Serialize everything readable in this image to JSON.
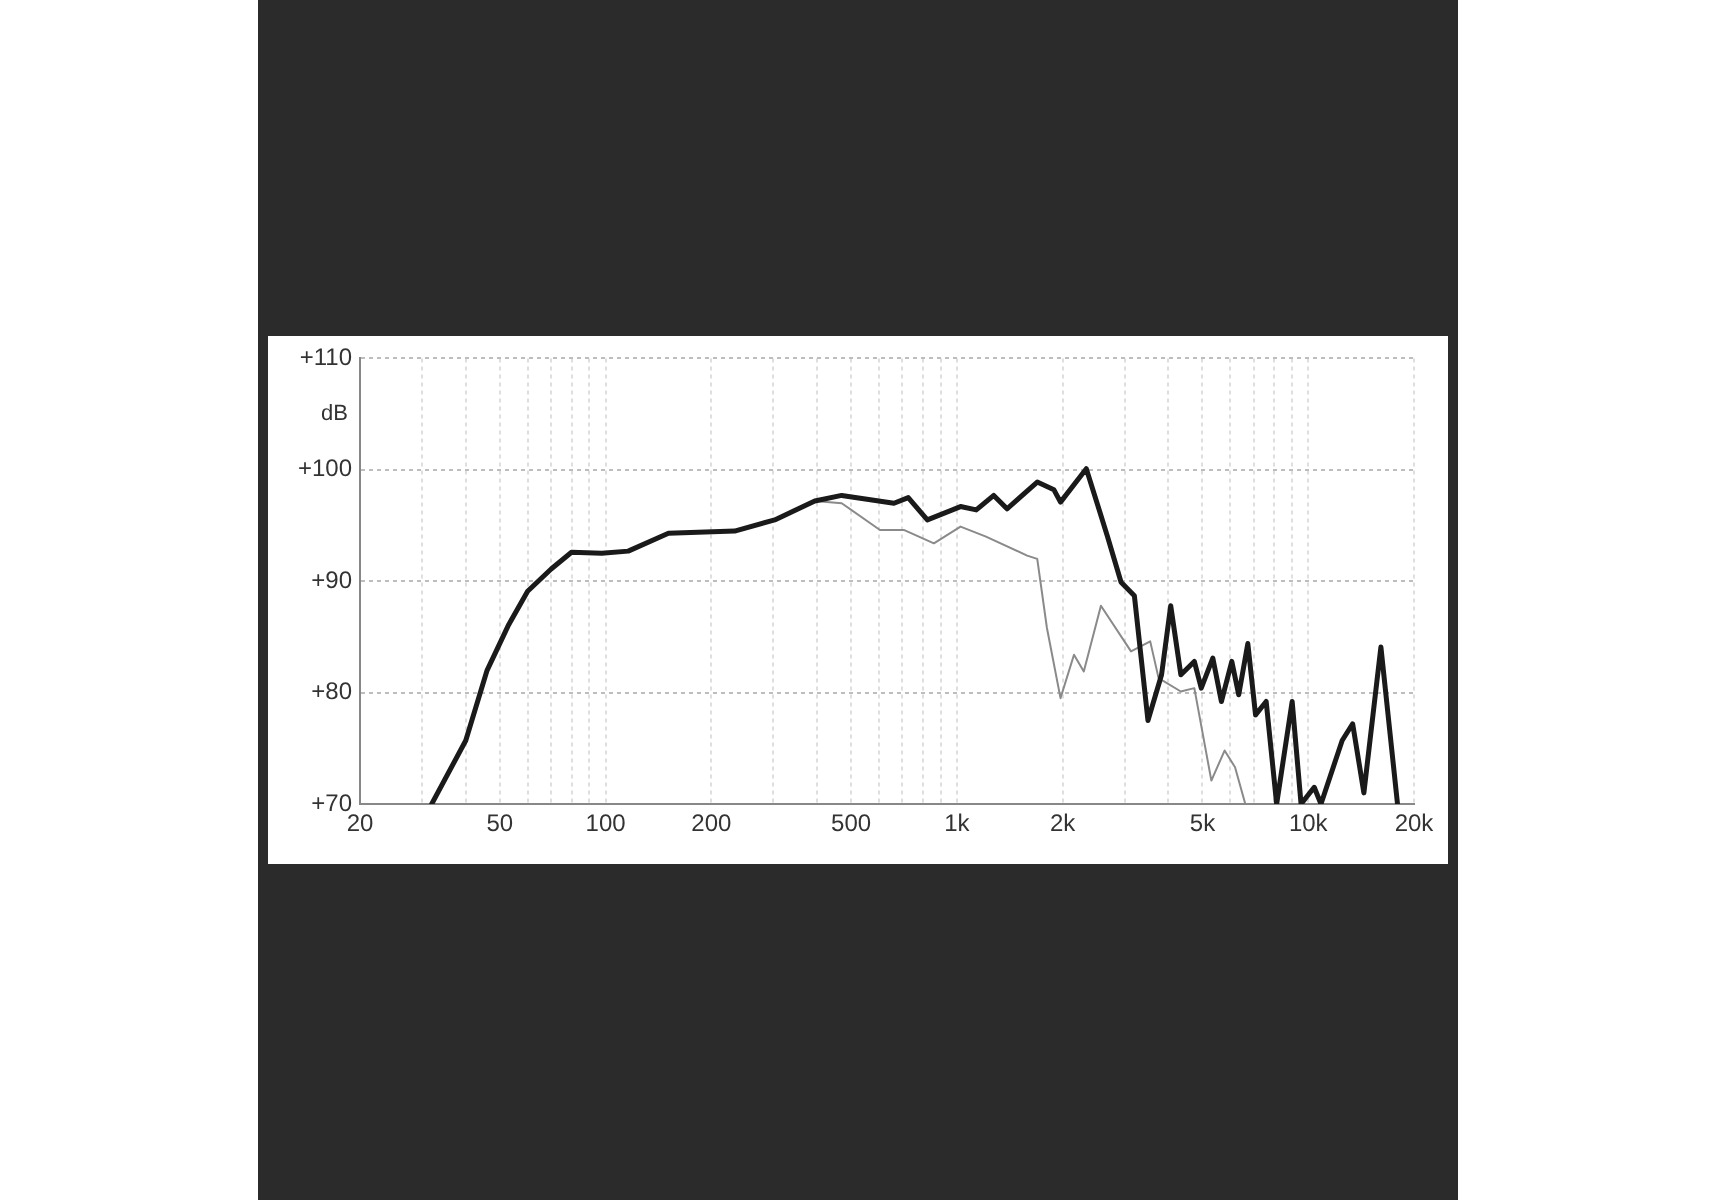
{
  "chart_data": {
    "type": "line",
    "ylabel": "dB",
    "log": "x",
    "grid": true,
    "legend": false,
    "marker": "none",
    "line_style": "solid",
    "xlim": [
      20,
      20000
    ],
    "ylim": [
      70,
      110
    ],
    "xticks": [
      20,
      {
        "value": 30,
        "label": null
      },
      {
        "value": 40,
        "label": null
      },
      50,
      {
        "value": 60,
        "label": null
      },
      {
        "value": 70,
        "label": null
      },
      {
        "value": 80,
        "label": null
      },
      {
        "value": 90,
        "label": null
      },
      100,
      200,
      {
        "value": 300,
        "label": null
      },
      {
        "value": 400,
        "label": null
      },
      500,
      {
        "value": 600,
        "label": null
      },
      {
        "value": 700,
        "label": null
      },
      {
        "value": 800,
        "label": null
      },
      {
        "value": 900,
        "label": null
      },
      {
        "value": 1000,
        "label": "1k"
      },
      {
        "value": 2000,
        "label": "2k"
      },
      {
        "value": 3000,
        "label": null
      },
      {
        "value": 4000,
        "label": null
      },
      {
        "value": 5000,
        "label": "5k"
      },
      {
        "value": 6000,
        "label": null
      },
      {
        "value": 7000,
        "label": null
      },
      {
        "value": 8000,
        "label": null
      },
      {
        "value": 9000,
        "label": null
      },
      {
        "value": 10000,
        "label": "10k"
      },
      {
        "value": 20000,
        "label": "20k"
      }
    ],
    "yticks": [
      {
        "value": 70,
        "label": "+70"
      },
      {
        "value": 80,
        "label": "+80"
      },
      {
        "value": 90,
        "label": "+90"
      },
      {
        "value": 100,
        "label": "+100"
      },
      {
        "value": 110,
        "label": "+110"
      }
    ],
    "series": [
      {
        "color": "#1a1a1a",
        "x": [
          32,
          40,
          46,
          53,
          60,
          70,
          80,
          97.5,
          116,
          151,
          233,
          303,
          394,
          470,
          662,
          727,
          824,
          1024,
          1135,
          1273,
          1389,
          1693,
          1889,
          1972,
          2335,
          2684,
          2933,
          3200,
          3498,
          3824,
          4060,
          4340,
          4740,
          4960,
          5350,
          5660,
          6060,
          6340,
          6730,
          7080,
          7590,
          8130,
          9000,
          9540,
          10400,
          10870,
          12490,
          13380,
          14400,
          16100,
          17950
        ],
        "values": [
          70,
          75.7,
          82,
          86.1,
          89.1,
          91.1,
          92.6,
          92.5,
          92.7,
          94.3,
          94.5,
          95.5,
          97.2,
          97.7,
          97,
          97.5,
          95.5,
          96.7,
          96.4,
          97.7,
          96.5,
          98.9,
          98.2,
          97.1,
          100.1,
          94,
          89.9,
          88.7,
          77.5,
          81.6,
          87.8,
          81.6,
          82.8,
          80.4,
          83.1,
          79.2,
          82.8,
          79.8,
          84.4,
          78,
          79.2,
          70,
          79.2,
          70,
          71.5,
          70,
          75.7,
          77.2,
          71,
          84.1,
          70
        ]
      },
      {
        "color": "#8a8a8a",
        "x": [
          394,
          470,
          604,
          706,
          860,
          1024,
          1210,
          1585,
          1693,
          1804,
          1972,
          2154,
          2297,
          2570,
          3130,
          3550,
          3750,
          4340,
          4740,
          5300,
          5780,
          6190,
          6620
        ],
        "values": [
          97.2,
          97,
          94.6,
          94.6,
          93.4,
          94.9,
          94,
          92.3,
          92,
          85.8,
          79.5,
          83.4,
          81.9,
          87.8,
          83.7,
          84.6,
          81.3,
          80.1,
          80.4,
          72.1,
          74.8,
          73.3,
          70
        ]
      }
    ]
  }
}
